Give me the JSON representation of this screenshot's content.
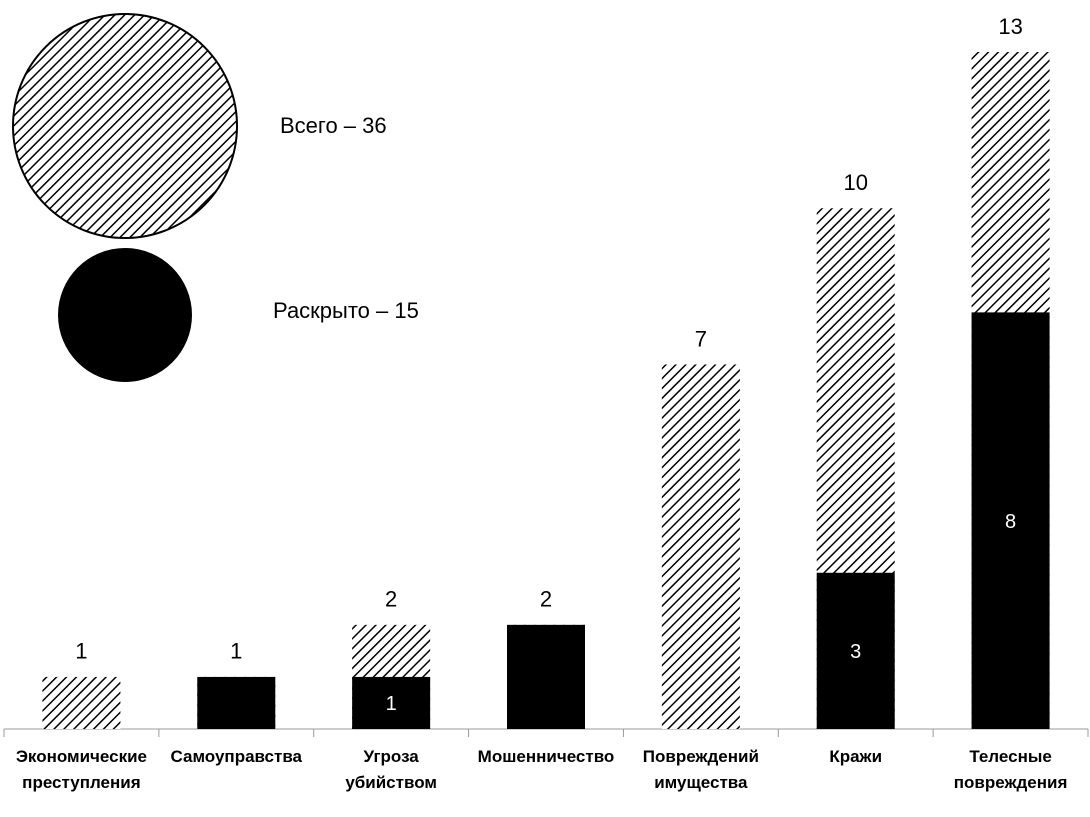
{
  "chart_data": {
    "type": "bar",
    "categories": [
      "Экономические преступления",
      "Самоуправства",
      "Угроза убийством",
      "Мошенничество",
      "Повреждений имущества",
      "Кражи",
      "Телесные повреждения"
    ],
    "series": [
      {
        "name": "Всего – 36",
        "color": "hatch",
        "values": [
          1,
          1,
          2,
          2,
          7,
          10,
          13
        ]
      },
      {
        "name": "Раскрыто – 15",
        "color": "#000000",
        "values": [
          0,
          1,
          1,
          2,
          0,
          3,
          8
        ],
        "value_labels": [
          null,
          null,
          "1",
          null,
          null,
          "3",
          "8"
        ]
      }
    ],
    "ylim": [
      0,
      13
    ]
  }
}
